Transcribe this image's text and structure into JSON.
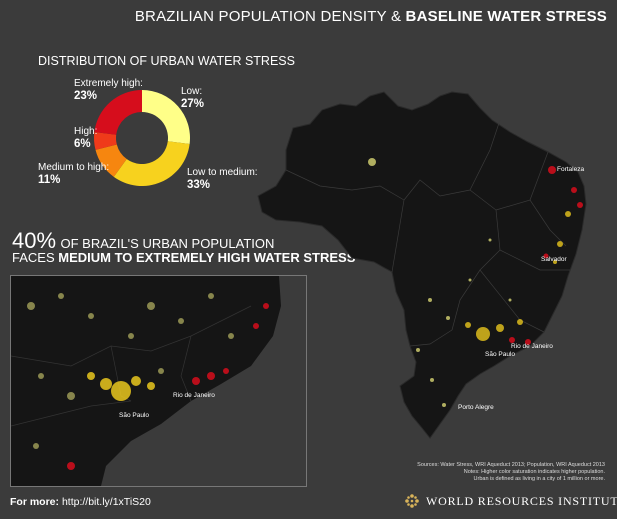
{
  "title": {
    "part1": "BRAZILIAN POPULATION DENSITY &",
    "part2": "BASELINE WATER STRESS"
  },
  "distribution": {
    "heading": "DISTRIBUTION OF URBAN WATER STRESS",
    "segments": [
      {
        "name": "Low:",
        "value": "27%",
        "pct": 27,
        "color": "#ffff88"
      },
      {
        "name": "Low to medium:",
        "value": "33%",
        "pct": 33,
        "color": "#f7d21e"
      },
      {
        "name": "Medium to high:",
        "value": "11%",
        "pct": 11,
        "color": "#f6860f"
      },
      {
        "name": "High:",
        "value": "6%",
        "pct": 6,
        "color": "#ef3a1a"
      },
      {
        "name": "Extremely high:",
        "value": "23%",
        "pct": 23,
        "color": "#d60d1c"
      }
    ]
  },
  "headline": {
    "pct": "40%",
    "line1": "OF BRAZIL'S URBAN POPULATION",
    "line2a": "FACES",
    "line2b": "MEDIUM TO EXTREMELY HIGH WATER STRESS"
  },
  "cities": {
    "fortaleza": "Fortaleza",
    "salvador": "Salvador",
    "rio": "Rio de Janeiro",
    "sao_paulo": "São Paulo",
    "porto_alegre": "Porto Alegre"
  },
  "inset_cities": {
    "rio": "Rio de Janeiro",
    "sao_paulo": "São Paulo"
  },
  "sources": {
    "line1": "Sources: Water Stress, WRI Aqueduct 2013; Population, WRI Aqueduct 2013",
    "line2": "Notes: Higher color saturation indicates higher population.",
    "line3": "Urban is defined as living in a city of 1 million or more."
  },
  "footer": {
    "label": "For more:",
    "url": "http://bit.ly/1xTiS20",
    "org": "WORLD RESOURCES INSTITUTE"
  },
  "colors": {
    "bg": "#3b3b3b",
    "map_land": "#151515",
    "low": "#e4e27a",
    "med": "#f7d21e",
    "high": "#d60d1c"
  }
}
